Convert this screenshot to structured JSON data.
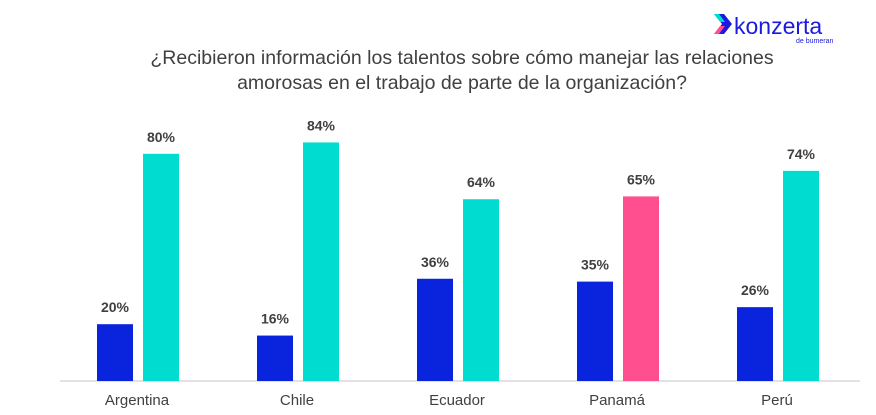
{
  "logo": {
    "text": "konzerta",
    "subtext": "de bumeran"
  },
  "chart_data": {
    "type": "bar",
    "title_lines": [
      "¿Recibieron información  los talentos sobre cómo manejar las relaciones",
      "amorosas en el trabajo de parte de la organización?"
    ],
    "categories": [
      "Argentina",
      "Chile",
      "Ecuador",
      "Panamá",
      "Perú"
    ],
    "series": [
      {
        "values": [
          20,
          16,
          36,
          35,
          26
        ],
        "color": "#0A23DC"
      },
      {
        "values": [
          80,
          84,
          64,
          65,
          74
        ],
        "color": "#00DCCF",
        "point_colors": {
          "3": "#FF4F8F"
        }
      }
    ],
    "value_suffix": "%",
    "ylim": [
      0,
      100
    ],
    "grid": false,
    "legend": "none"
  }
}
